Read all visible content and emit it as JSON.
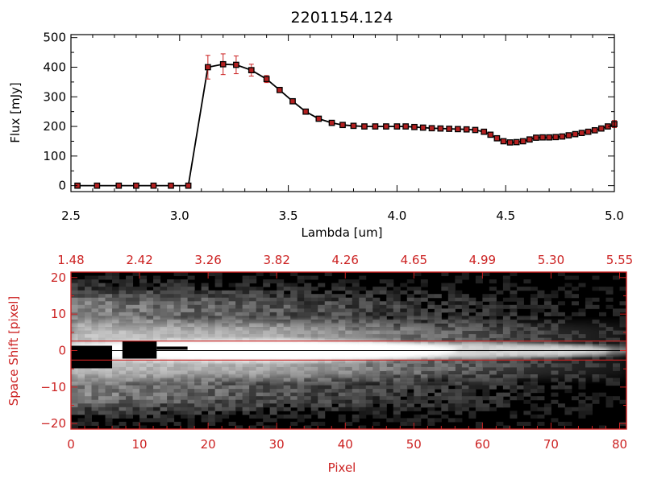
{
  "colors": {
    "frame_top": "#000000",
    "frame_bottom": "#cc2222",
    "line": "#000000",
    "marker_edge": "#000000",
    "marker_fill": "#b42020",
    "errorbar": "#cc2222",
    "background": "#ffffff"
  },
  "chart_data": [
    {
      "type": "line",
      "title": "2201154.124",
      "xlabel": "Lambda [um]",
      "ylabel": "Flux [mJy]",
      "xlim": [
        2.5,
        5.0
      ],
      "ylim": [
        -20,
        510
      ],
      "x_ticks": [
        2.5,
        3.0,
        3.5,
        4.0,
        4.5,
        5.0
      ],
      "x_tick_labels": [
        "2.5",
        "3.0",
        "3.5",
        "4.0",
        "4.5",
        "5.0"
      ],
      "y_ticks": [
        0,
        100,
        200,
        300,
        400,
        500
      ],
      "y_tick_labels": [
        "0",
        "100",
        "200",
        "300",
        "400",
        "500"
      ],
      "grid": false,
      "series": [
        {
          "x": [
            2.53,
            2.62,
            2.72,
            2.8,
            2.88,
            2.96,
            3.04,
            3.13,
            3.2,
            3.26,
            3.33,
            3.4,
            3.46,
            3.52,
            3.58,
            3.64,
            3.7,
            3.75,
            3.8,
            3.85,
            3.9,
            3.95,
            4.0,
            4.04,
            4.08,
            4.12,
            4.16,
            4.2,
            4.24,
            4.28,
            4.32,
            4.36,
            4.4,
            4.43,
            4.46,
            4.49,
            4.52,
            4.55,
            4.58,
            4.61,
            4.64,
            4.67,
            4.7,
            4.73,
            4.76,
            4.79,
            4.82,
            4.85,
            4.88,
            4.91,
            4.94,
            4.97,
            5.0
          ],
          "y": [
            0,
            0,
            0,
            0,
            0,
            0,
            0,
            400,
            410,
            408,
            390,
            360,
            323,
            285,
            250,
            226,
            212,
            205,
            202,
            200,
            200,
            200,
            200,
            200,
            198,
            196,
            194,
            193,
            192,
            191,
            190,
            188,
            182,
            172,
            160,
            150,
            146,
            147,
            150,
            156,
            162,
            163,
            163,
            164,
            166,
            170,
            174,
            178,
            182,
            187,
            193,
            200,
            208
          ],
          "yerr": [
            0,
            0,
            0,
            0,
            0,
            0,
            0,
            40,
            35,
            30,
            20,
            12,
            8,
            6,
            5,
            4,
            4,
            4,
            4,
            4,
            4,
            4,
            4,
            4,
            4,
            4,
            4,
            4,
            4,
            4,
            4,
            4,
            4,
            4,
            4,
            4,
            4,
            4,
            4,
            4,
            4,
            4,
            4,
            4,
            4,
            4,
            4,
            4,
            4,
            4,
            5,
            6,
            12
          ]
        }
      ]
    },
    {
      "type": "heatmap",
      "xlabel": "Pixel",
      "ylabel": "Space Shift [pixel]",
      "xlim": [
        0,
        81
      ],
      "ylim": [
        -21.5,
        21.5
      ],
      "x_ticks": [
        0,
        10,
        20,
        30,
        40,
        50,
        60,
        70,
        80
      ],
      "x_tick_labels": [
        "0",
        "10",
        "20",
        "30",
        "40",
        "50",
        "60",
        "70",
        "80"
      ],
      "y_ticks": [
        -20,
        -10,
        0,
        10,
        20
      ],
      "y_tick_labels": [
        "−20",
        "−10",
        "0",
        "10",
        "20"
      ],
      "top_ticks": [
        0,
        10,
        20,
        30,
        40,
        50,
        60,
        70,
        80
      ],
      "top_tick_labels": [
        "1.48",
        "2.42",
        "3.26",
        "3.82",
        "4.26",
        "4.65",
        "4.99",
        "5.30",
        "5.55"
      ],
      "trace_center": 0,
      "aperture_lines": [
        2.6,
        -2.6
      ],
      "colormap": "grayscale",
      "grid": false
    }
  ]
}
